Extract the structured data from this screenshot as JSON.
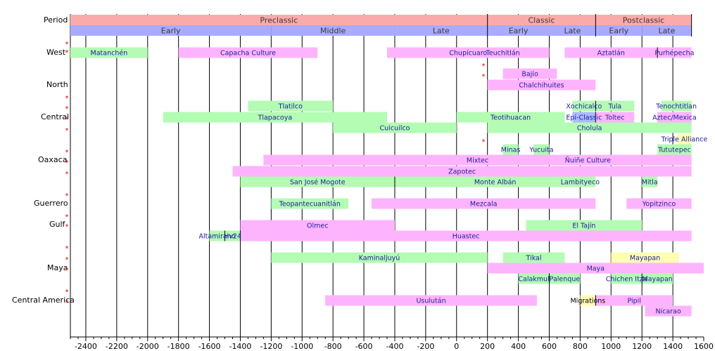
{
  "chart_data": {
    "type": "timeline",
    "title": "",
    "xlabel": "",
    "ylabel": "",
    "xlim": [
      -2500,
      1600
    ],
    "x_ticks": [
      -2400,
      -2200,
      -2000,
      -1800,
      -1600,
      -1400,
      -1200,
      -1000,
      -800,
      -600,
      -400,
      -200,
      0,
      200,
      400,
      600,
      800,
      1000,
      1200,
      1400,
      1600
    ],
    "row_label": "Period",
    "rows": [
      "West",
      "North",
      "Central",
      "Oaxaca",
      "Guerrero",
      "Gulf",
      "Maya",
      "Central America"
    ],
    "periods": [
      {
        "label": "Preclassic",
        "start": -2500,
        "end": 200
      },
      {
        "label": "Classic",
        "start": 200,
        "end": 900
      },
      {
        "label": "Postclassic",
        "start": 900,
        "end": 1521
      }
    ],
    "subperiods": [
      {
        "label": "Early",
        "start": -2500,
        "end": -1200
      },
      {
        "label": "Middle",
        "start": -1200,
        "end": -400
      },
      {
        "label": "Late",
        "start": -400,
        "end": 200
      },
      {
        "label": "Early",
        "start": 200,
        "end": 600
      },
      {
        "label": "Late",
        "start": 600,
        "end": 900
      },
      {
        "label": "Early",
        "start": 900,
        "end": 1200
      },
      {
        "label": "Late",
        "start": 1200,
        "end": 1521
      }
    ],
    "cultures": [
      {
        "name": "Matanchén",
        "start": -2500,
        "end": -2000,
        "lane": 0,
        "row": "West",
        "color": "#b4fbb4"
      },
      {
        "name": "Capacha Culture",
        "start": -1800,
        "end": -900,
        "lane": 0,
        "row": "West",
        "color": "#fdb4fd"
      },
      {
        "name": "Chupícuaro",
        "start": -450,
        "end": 600,
        "lane": 0,
        "row": "West",
        "color": "#fdb4fd"
      },
      {
        "name": "Teuchitlán",
        "start": 0,
        "end": 600,
        "lane": 0,
        "row": "West",
        "color": "#fdb4fd"
      },
      {
        "name": "Aztatlán",
        "start": 700,
        "end": 1300,
        "lane": 0,
        "row": "West",
        "color": "#fdb4fd"
      },
      {
        "name": "Purhépecha",
        "start": 1300,
        "end": 1521,
        "lane": 0,
        "row": "West",
        "color": "#fdb4fd"
      },
      {
        "name": "Bajío",
        "start": 300,
        "end": 650,
        "lane": 1,
        "row": "North",
        "color": "#fdb4fd"
      },
      {
        "name": "Chalchihuites",
        "start": 200,
        "end": 900,
        "lane": 2,
        "row": "North",
        "color": "#fdb4fd"
      },
      {
        "name": "Tlatilco",
        "start": -1350,
        "end": -800,
        "lane": 3,
        "row": "Central",
        "color": "#b4fbb4"
      },
      {
        "name": "Xochicalco",
        "start": 750,
        "end": 900,
        "lane": 3,
        "row": "Central",
        "color": "#b4fbb4"
      },
      {
        "name": "Tula",
        "start": 900,
        "end": 1150,
        "lane": 3,
        "row": "Central",
        "color": "#b4fbb4"
      },
      {
        "name": "Tenochtitlan",
        "start": 1325,
        "end": 1521,
        "lane": 3,
        "row": "Central",
        "color": "#b4fbb4"
      },
      {
        "name": "Tlapacoya",
        "start": -1900,
        "end": -450,
        "lane": 4,
        "row": "Central",
        "color": "#b4fbb4"
      },
      {
        "name": "Teotihuacan",
        "start": 0,
        "end": 700,
        "lane": 4,
        "row": "Central",
        "color": "#b4fbb4"
      },
      {
        "name": "Epi-Classic",
        "start": 750,
        "end": 900,
        "lane": 4,
        "row": "Central",
        "color": "#aabbff"
      },
      {
        "name": "Toltec",
        "start": 900,
        "end": 1150,
        "lane": 4,
        "row": "Central",
        "color": "#fdb4fd"
      },
      {
        "name": "Aztec/Mexica",
        "start": 1300,
        "end": 1521,
        "lane": 4,
        "row": "Central",
        "color": "#fdb4fd"
      },
      {
        "name": "Cuicuilco",
        "start": -800,
        "end": 0,
        "lane": 5,
        "row": "Central",
        "color": "#b4fbb4"
      },
      {
        "name": "Cholula",
        "start": 200,
        "end": 1521,
        "lane": 5,
        "row": "Central",
        "color": "#b4fbb4"
      },
      {
        "name": "Triple Alliance",
        "start": 1428,
        "end": 1521,
        "lane": 6,
        "row": "Central",
        "color": "#fdfdb4"
      },
      {
        "name": "Minas",
        "start": 300,
        "end": 400,
        "lane": 7,
        "row": "Oaxaca",
        "color": "#b4fbb4"
      },
      {
        "name": "Yucuita",
        "start": 500,
        "end": 600,
        "lane": 7,
        "row": "Oaxaca",
        "color": "#b4fbb4"
      },
      {
        "name": "Tututepec",
        "start": 1300,
        "end": 1521,
        "lane": 7,
        "row": "Oaxaca",
        "color": "#b4fbb4"
      },
      {
        "name": "Mixtec",
        "start": -1250,
        "end": 1521,
        "lane": 8,
        "row": "Oaxaca",
        "color": "#fdb4fd"
      },
      {
        "name": "Ñuiñe Culture",
        "start": 700,
        "end": 1000,
        "lane": 8,
        "row": "Oaxaca",
        "color": "#fdb4fd"
      },
      {
        "name": "Zapotec",
        "start": -1450,
        "end": 1521,
        "lane": 9,
        "row": "Oaxaca",
        "color": "#fdb4fd"
      },
      {
        "name": "San José Mogote",
        "start": -1400,
        "end": -400,
        "lane": 10,
        "row": "Oaxaca",
        "color": "#b4fbb4"
      },
      {
        "name": "Monte Albán",
        "start": -400,
        "end": 900,
        "lane": 10,
        "row": "Oaxaca",
        "color": "#b4fbb4"
      },
      {
        "name": "Lambityeco",
        "start": 700,
        "end": 900,
        "lane": 10,
        "row": "Oaxaca",
        "color": "#b4fbb4"
      },
      {
        "name": "Mitla",
        "start": 1200,
        "end": 1300,
        "lane": 10,
        "row": "Oaxaca",
        "color": "#b4fbb4"
      },
      {
        "name": "Teopantecuanitlán",
        "start": -1200,
        "end": -700,
        "lane": 11,
        "row": "Guerrero",
        "color": "#b4fbb4"
      },
      {
        "name": "Mezcala",
        "start": -550,
        "end": 900,
        "lane": 11,
        "row": "Guerrero",
        "color": "#fdb4fd"
      },
      {
        "name": "Yopitzinco",
        "start": 1100,
        "end": 1521,
        "lane": 11,
        "row": "Guerrero",
        "color": "#fdb4fd"
      },
      {
        "name": "Olmec",
        "start": -1400,
        "end": -400,
        "lane": 12,
        "row": "Gulf",
        "color": "#fdb4fd"
      },
      {
        "name": "El Tajín",
        "start": 450,
        "end": 1200,
        "lane": 12,
        "row": "Gulf",
        "color": "#b4fbb4"
      },
      {
        "name": "Altamirano",
        "start": -1600,
        "end": -1500,
        "lane": 13,
        "row": "Gulf",
        "color": "#b4fbb4"
      },
      {
        "name": "Hv24",
        "start": -1500,
        "end": -1400,
        "lane": 13,
        "row": "Gulf",
        "color": "#b4fbb4"
      },
      {
        "name": "Huastec",
        "start": -1400,
        "end": 1521,
        "lane": 13,
        "row": "Gulf",
        "color": "#fdb4fd"
      },
      {
        "name": "Kaminaljuyú",
        "start": -1200,
        "end": 200,
        "lane": 14,
        "row": "Maya",
        "color": "#b4fbb4"
      },
      {
        "name": "Tikal",
        "start": 300,
        "end": 700,
        "lane": 14,
        "row": "Maya",
        "color": "#b4fbb4"
      },
      {
        "name": "Mayapan",
        "start": 1000,
        "end": 1440,
        "lane": 14,
        "row": "Maya",
        "color": "#fdfdb4"
      },
      {
        "name": "Maya",
        "start": 200,
        "end": 1600,
        "lane": 15,
        "row": "Maya",
        "color": "#fdb4fd"
      },
      {
        "name": "Calakmul",
        "start": 400,
        "end": 600,
        "lane": 16,
        "row": "Maya",
        "color": "#b4fbb4"
      },
      {
        "name": "Palenque",
        "start": 600,
        "end": 800,
        "lane": 16,
        "row": "Maya",
        "color": "#b4fbb4"
      },
      {
        "name": "Chichen Itza",
        "start": 1000,
        "end": 1200,
        "lane": 16,
        "row": "Maya",
        "color": "#b4fbb4"
      },
      {
        "name": "Mayapan",
        "start": 1200,
        "end": 1400,
        "lane": 16,
        "row": "Maya",
        "color": "#b4fbb4"
      },
      {
        "name": "Usulután",
        "start": -850,
        "end": 520,
        "lane": 17,
        "row": "Central America",
        "color": "#fdb4fd"
      },
      {
        "name": "Migrations",
        "start": 800,
        "end": 900,
        "lane": 17,
        "row": "Central America",
        "color": "#fdfdb4"
      },
      {
        "name": "Pipil",
        "start": 900,
        "end": 1400,
        "lane": 17,
        "row": "Central America",
        "color": "#fdb4fd"
      },
      {
        "name": "Nicarao",
        "start": 1220,
        "end": 1521,
        "lane": 18,
        "row": "Central America",
        "color": "#fdb4fd"
      }
    ],
    "grid": true,
    "colors": {
      "period": "#fbaaaa",
      "subperiod": "#aaaaff",
      "marker": "#e00000"
    }
  },
  "markers": {
    "note_symbol": "*"
  }
}
